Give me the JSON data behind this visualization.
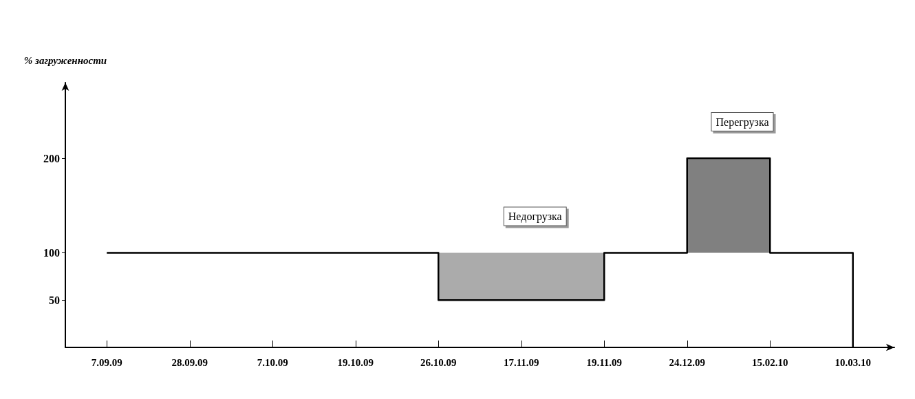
{
  "chart_data": {
    "type": "step",
    "ylabel": "% загруженности",
    "categories": [
      "7.09.09",
      "28.09.09",
      "7.10.09",
      "19.10.09",
      "26.10.09",
      "17.11.09",
      "19.11.09",
      "24.12.09",
      "15.02.10",
      "10.03.10"
    ],
    "series": [
      {
        "color": "#000000",
        "values": [
          100,
          100,
          100,
          100,
          50,
          50,
          100,
          200,
          100,
          0
        ]
      }
    ],
    "ylim": [
      0,
      280
    ],
    "yticks": [
      50,
      100,
      200
    ],
    "bands": [
      {
        "axis": "x",
        "from": "26.10.09",
        "to": "19.11.09",
        "label": "Недогрузка",
        "color": "#9c9c9c"
      },
      {
        "axis": "x",
        "from": "24.12.09",
        "to": "15.02.10",
        "label": "Перегрузка",
        "color": "#6a6a6a"
      }
    ],
    "grid": false,
    "marker": "none",
    "line_style": "solid"
  }
}
